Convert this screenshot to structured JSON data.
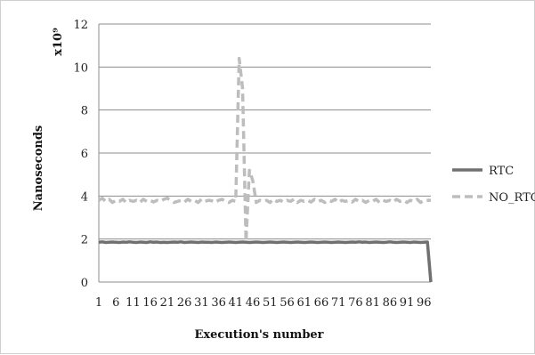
{
  "chart_data": {
    "type": "line",
    "title": "",
    "xlabel": "Execution's number",
    "ylabel": "Nanoseconds",
    "y_multiplier_label": "x10⁹",
    "ylim": [
      0,
      12
    ],
    "yticks": [
      0,
      2,
      4,
      6,
      8,
      10,
      12
    ],
    "xlim": [
      1,
      98
    ],
    "xticks": [
      1,
      6,
      11,
      16,
      21,
      26,
      31,
      36,
      41,
      46,
      51,
      56,
      61,
      66,
      71,
      76,
      81,
      86,
      91,
      96
    ],
    "grid": true,
    "legend_position": "right",
    "series": [
      {
        "name": "RTC",
        "color": "#707070",
        "style": "solid",
        "x": [
          1,
          2,
          3,
          4,
          5,
          6,
          7,
          8,
          9,
          10,
          11,
          12,
          13,
          14,
          15,
          16,
          17,
          18,
          19,
          20,
          21,
          22,
          23,
          24,
          25,
          26,
          27,
          28,
          29,
          30,
          31,
          32,
          33,
          34,
          35,
          36,
          37,
          38,
          39,
          40,
          41,
          42,
          43,
          44,
          45,
          46,
          47,
          48,
          49,
          50,
          51,
          52,
          53,
          54,
          55,
          56,
          57,
          58,
          59,
          60,
          61,
          62,
          63,
          64,
          65,
          66,
          67,
          68,
          69,
          70,
          71,
          72,
          73,
          74,
          75,
          76,
          77,
          78,
          79,
          80,
          81,
          82,
          83,
          84,
          85,
          86,
          87,
          88,
          89,
          90,
          91,
          92,
          93,
          94,
          95,
          96,
          97,
          98
        ],
        "values": [
          1.85,
          1.87,
          1.84,
          1.85,
          1.86,
          1.85,
          1.84,
          1.86,
          1.85,
          1.87,
          1.85,
          1.84,
          1.86,
          1.85,
          1.84,
          1.87,
          1.85,
          1.86,
          1.84,
          1.85,
          1.84,
          1.85,
          1.86,
          1.85,
          1.87,
          1.84,
          1.85,
          1.86,
          1.85,
          1.84,
          1.86,
          1.85,
          1.85,
          1.84,
          1.86,
          1.85,
          1.84,
          1.85,
          1.86,
          1.85,
          1.84,
          1.85,
          1.86,
          1.85,
          1.84,
          1.85,
          1.86,
          1.85,
          1.84,
          1.85,
          1.86,
          1.85,
          1.84,
          1.85,
          1.86,
          1.85,
          1.84,
          1.85,
          1.86,
          1.85,
          1.84,
          1.85,
          1.86,
          1.85,
          1.84,
          1.85,
          1.86,
          1.85,
          1.84,
          1.85,
          1.86,
          1.85,
          1.84,
          1.85,
          1.86,
          1.85,
          1.87,
          1.85,
          1.86,
          1.84,
          1.85,
          1.86,
          1.85,
          1.84,
          1.85,
          1.87,
          1.85,
          1.84,
          1.85,
          1.86,
          1.85,
          1.84,
          1.86,
          1.85,
          1.84,
          1.85,
          1.86,
          0.0
        ]
      },
      {
        "name": "NO_RTC",
        "color": "#bdbdbd",
        "style": "dashed",
        "x": [
          1,
          2,
          3,
          4,
          5,
          6,
          7,
          8,
          9,
          10,
          11,
          12,
          13,
          14,
          15,
          16,
          17,
          18,
          19,
          20,
          21,
          22,
          23,
          24,
          25,
          26,
          27,
          28,
          29,
          30,
          31,
          32,
          33,
          34,
          35,
          36,
          37,
          38,
          39,
          40,
          41,
          42,
          43,
          44,
          45,
          46,
          47,
          48,
          49,
          50,
          51,
          52,
          53,
          54,
          55,
          56,
          57,
          58,
          59,
          60,
          61,
          62,
          63,
          64,
          65,
          66,
          67,
          68,
          69,
          70,
          71,
          72,
          73,
          74,
          75,
          76,
          77,
          78,
          79,
          80,
          81,
          82,
          83,
          84,
          85,
          86,
          87,
          88,
          89,
          90,
          91,
          92,
          93,
          94,
          95,
          96,
          97,
          98
        ],
        "values": [
          3.8,
          3.9,
          3.75,
          3.85,
          3.7,
          3.8,
          3.75,
          3.85,
          3.7,
          3.8,
          3.75,
          3.8,
          3.7,
          3.85,
          3.75,
          3.8,
          3.72,
          3.8,
          3.75,
          3.85,
          3.9,
          3.8,
          3.7,
          3.75,
          3.8,
          3.72,
          3.85,
          3.75,
          3.8,
          3.7,
          3.85,
          3.75,
          3.8,
          3.78,
          3.7,
          3.8,
          3.85,
          3.75,
          3.7,
          3.8,
          3.75,
          10.4,
          9.0,
          1.9,
          5.2,
          4.7,
          3.7,
          3.8,
          3.75,
          3.8,
          3.7,
          3.85,
          3.75,
          3.8,
          3.72,
          3.8,
          3.75,
          3.85,
          3.7,
          3.8,
          3.75,
          3.8,
          3.72,
          3.85,
          3.75,
          3.8,
          3.7,
          3.8,
          3.75,
          3.85,
          3.7,
          3.8,
          3.75,
          3.8,
          3.72,
          3.85,
          3.75,
          3.8,
          3.7,
          3.8,
          3.75,
          3.85,
          3.7,
          3.8,
          3.75,
          3.8,
          3.72,
          3.85,
          3.75,
          3.8,
          3.7,
          3.8,
          3.75,
          3.85,
          3.7,
          3.8,
          3.8,
          3.8
        ]
      }
    ]
  }
}
